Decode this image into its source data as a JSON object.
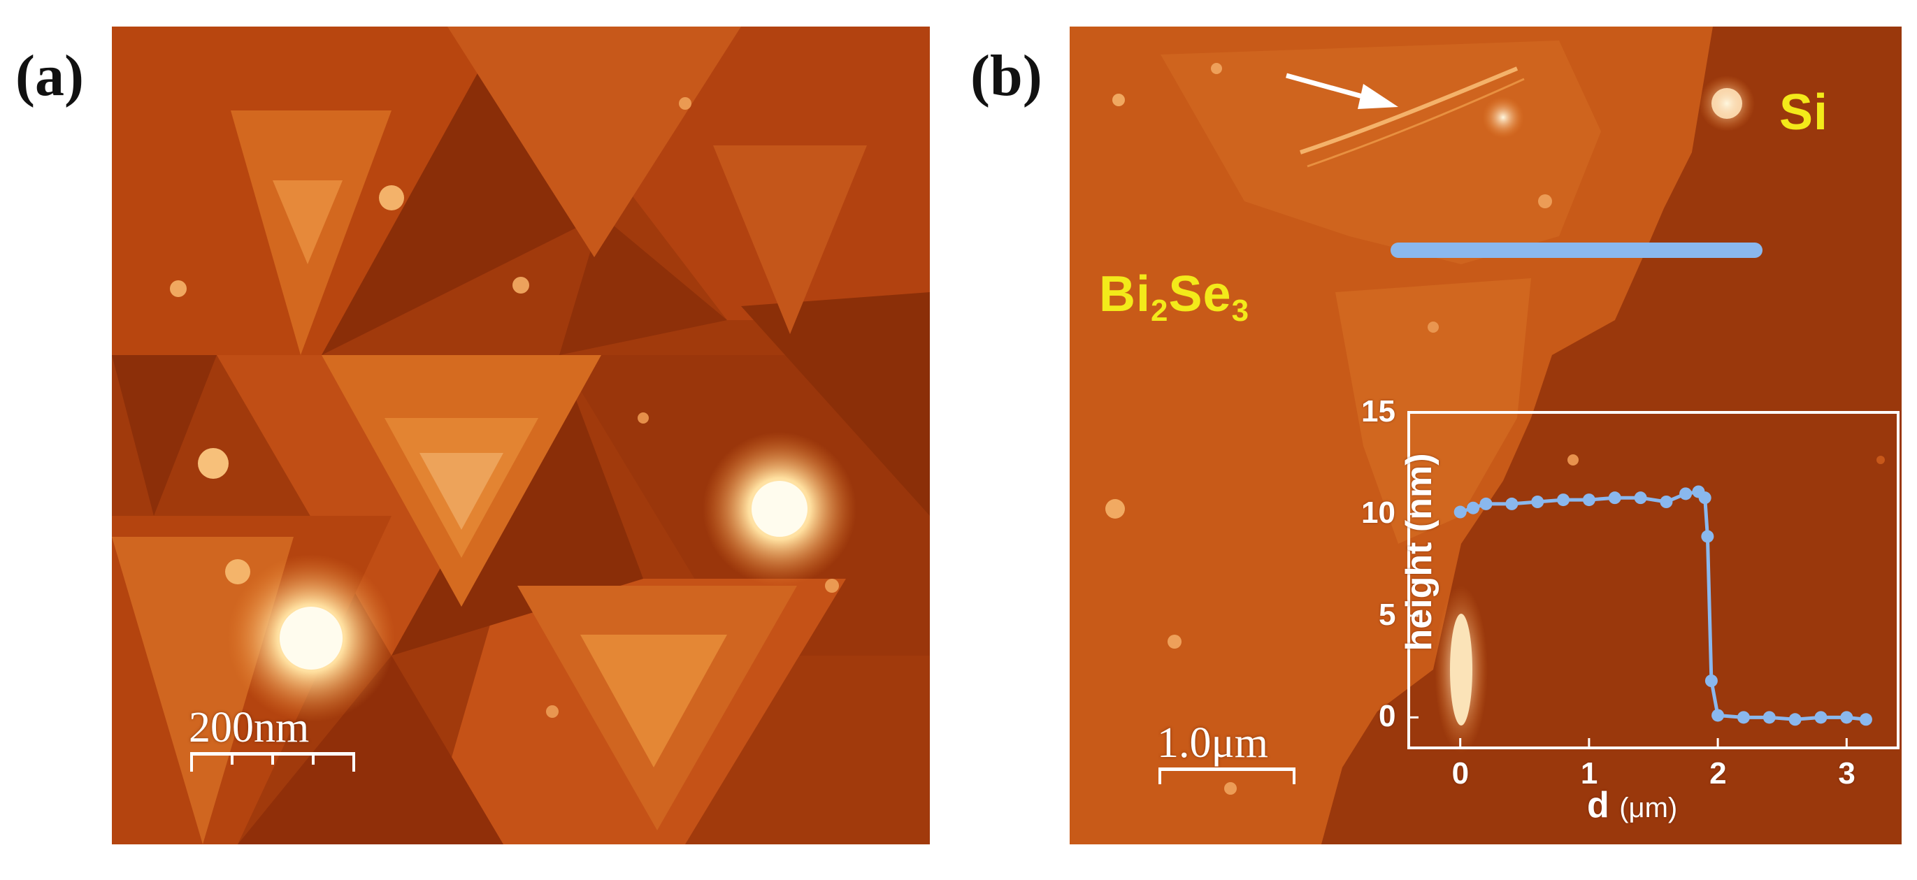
{
  "figure": {
    "panels": [
      {
        "id": "a",
        "label": "(a)",
        "scale_bar": "200nm"
      },
      {
        "id": "b",
        "label": "(b)",
        "scale_bar": "1.0μm"
      }
    ],
    "materials": {
      "si": "Si",
      "bise_main": "Bi",
      "bise_sub1": "2",
      "bise_mid": "Se",
      "bise_sub2": "3"
    },
    "colors": {
      "afm_dark": "#8a2e08",
      "afm_mid": "#c24f14",
      "afm_light": "#e8822e",
      "afm_bright": "#fff4d8",
      "profile_line": "#8ab8ee",
      "material_label": "#f3ea1a"
    }
  },
  "chart_data": {
    "type": "line",
    "xlabel": "d",
    "xlabel_unit": "(μm)",
    "ylabel": "height (nm)",
    "xlim": [
      -0.4,
      3.4
    ],
    "ylim": [
      -1.5,
      15
    ],
    "xticks": [
      "0",
      "1",
      "2",
      "3"
    ],
    "yticks": [
      "0",
      "5",
      "10",
      "15"
    ],
    "series": [
      {
        "x": [
          0.0,
          0.1,
          0.2,
          0.4,
          0.6,
          0.8,
          1.0,
          1.2,
          1.4,
          1.6,
          1.75,
          1.85,
          1.9,
          1.92,
          1.95,
          2.0,
          2.2,
          2.4,
          2.6,
          2.8,
          3.0,
          3.15
        ],
        "y": [
          10.1,
          10.3,
          10.5,
          10.5,
          10.6,
          10.7,
          10.7,
          10.8,
          10.8,
          10.6,
          11.0,
          11.1,
          10.8,
          8.9,
          1.8,
          0.1,
          0.0,
          0.0,
          -0.1,
          0.0,
          0.0,
          -0.1
        ]
      }
    ]
  }
}
